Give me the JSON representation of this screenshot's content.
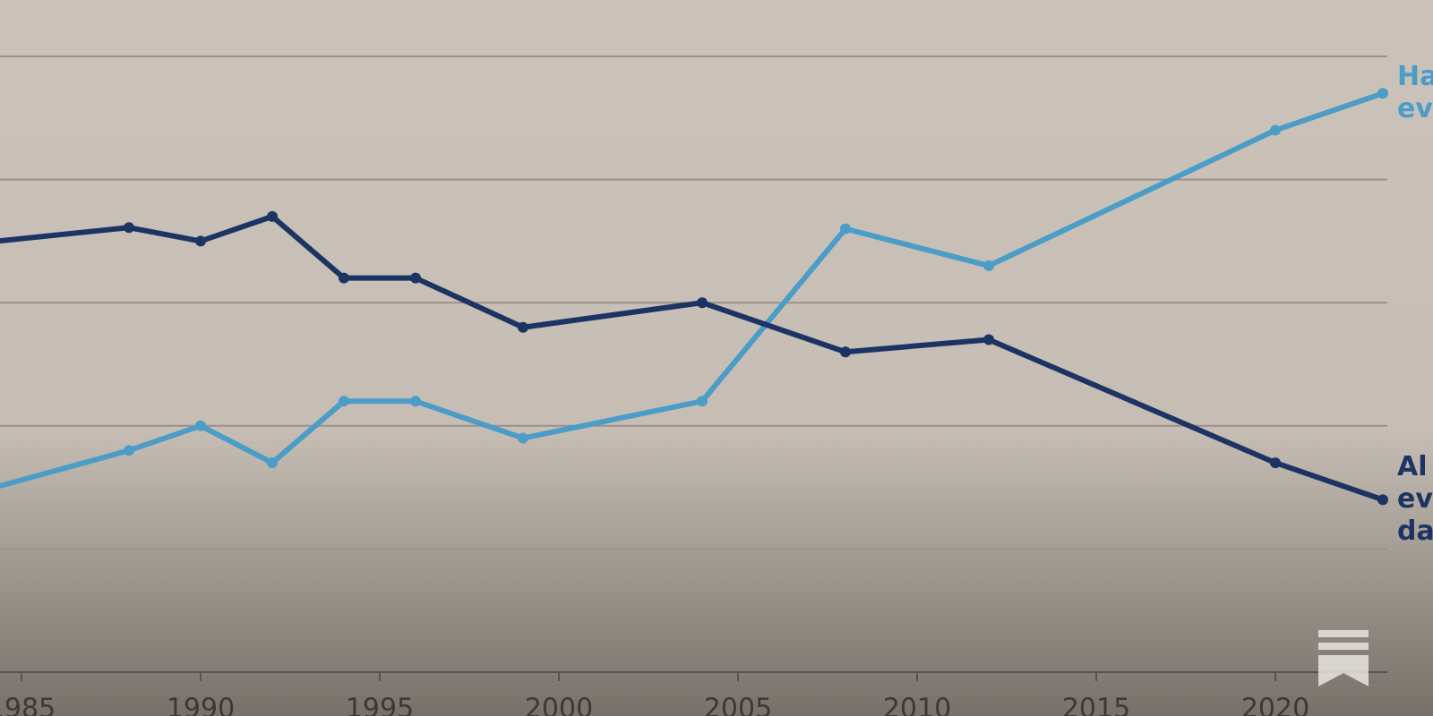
{
  "chart_data": {
    "type": "line",
    "x": [
      1984,
      1988,
      1990,
      1992,
      1994,
      1996,
      1999,
      2004,
      2008,
      2012,
      2020,
      2023
    ],
    "series": [
      {
        "label_lines": [
          "Ha",
          "ev"
        ],
        "color": "#4b9dc8",
        "values": [
          14.8,
          18,
          20,
          17,
          22,
          22,
          19,
          22,
          36,
          33,
          44,
          47
        ]
      },
      {
        "label_lines": [
          "Al",
          "ev",
          "da"
        ],
        "color": "#1c3463",
        "values": [
          34.9,
          36.1,
          35,
          37,
          32,
          32,
          28,
          30,
          26,
          27,
          17,
          14
        ]
      }
    ],
    "xlim": [
      1984.4,
      2024.4
    ],
    "xticks": [
      1985,
      1990,
      1995,
      2000,
      2005,
      2010,
      2015,
      2020
    ],
    "ylim": [
      0,
      50
    ],
    "yticks": [
      0,
      10,
      20,
      30,
      40,
      50
    ],
    "grid": true
  }
}
